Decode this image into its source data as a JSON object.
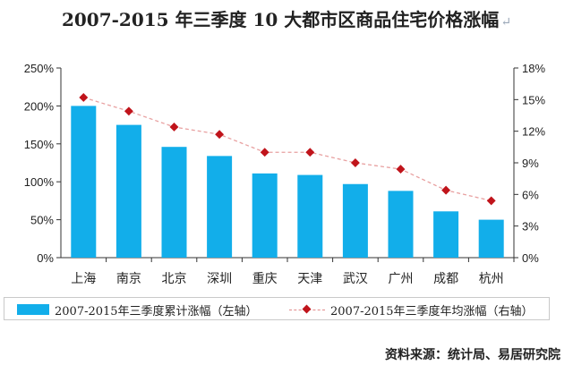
{
  "title": "2007-2015 年三季度 10 大都市区商品住宅价格涨幅",
  "title_mark": "↵",
  "source": "资料来源：统计局、易居研究院",
  "colors": {
    "bar": "#12aeea",
    "line": "#e8a0a0",
    "marker": "#c0141b"
  },
  "chart_data": {
    "type": "bar",
    "categories": [
      "上海",
      "南京",
      "北京",
      "深圳",
      "重庆",
      "天津",
      "武汉",
      "广州",
      "成都",
      "杭州"
    ],
    "series": [
      {
        "name": "2007-2015年三季度累计涨幅（左轴）",
        "type": "bar",
        "axis": "left",
        "values": [
          200,
          175,
          146,
          134,
          111,
          109,
          97,
          88,
          61,
          50
        ]
      },
      {
        "name": "2007-2015年三季度年均涨幅（右轴）",
        "type": "line",
        "axis": "right",
        "values": [
          15.2,
          13.9,
          12.4,
          11.7,
          10.0,
          10.0,
          9.0,
          8.4,
          6.4,
          5.4
        ]
      }
    ],
    "left_axis": {
      "ylim": [
        0,
        250
      ],
      "ticks": [
        "0%",
        "50%",
        "100%",
        "150%",
        "200%",
        "250%"
      ]
    },
    "right_axis": {
      "ylim": [
        0,
        18
      ],
      "ticks": [
        "0%",
        "3%",
        "6%",
        "9%",
        "12%",
        "15%",
        "18%"
      ]
    },
    "grid": false,
    "legend": "bottom"
  }
}
